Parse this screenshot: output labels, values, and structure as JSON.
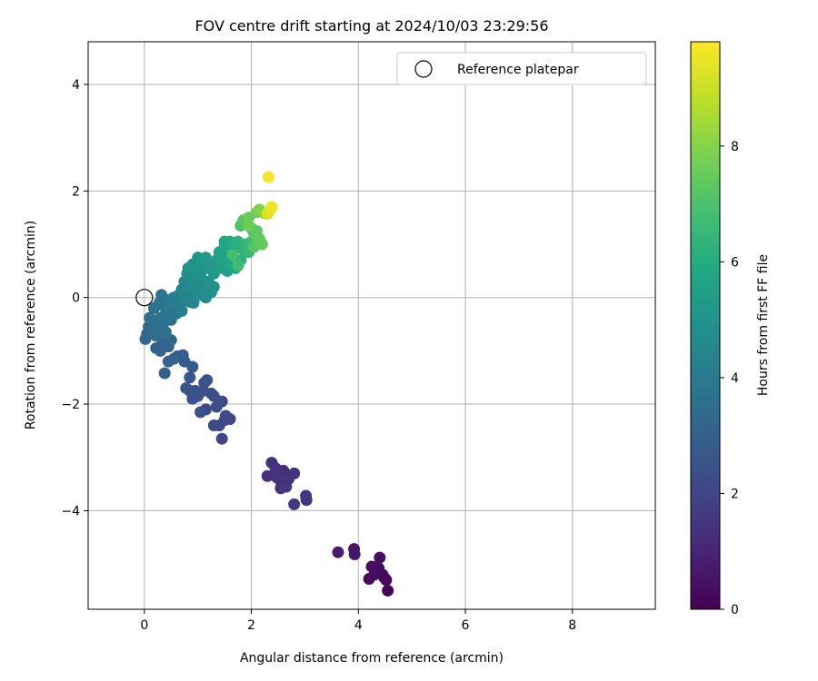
{
  "chart_data": {
    "type": "scatter",
    "title": "FOV centre drift starting at 2024/10/03 23:29:56",
    "xlabel": "Angular distance from reference (arcmin)",
    "ylabel": "Rotation from reference (arcmin)",
    "xlim": [
      -1.05,
      9.55
    ],
    "ylim": [
      -5.85,
      4.8
    ],
    "xticks": [
      0,
      2,
      4,
      6,
      8
    ],
    "yticks": [
      -4,
      -2,
      0,
      2,
      4
    ],
    "xtick_labels": [
      "0",
      "2",
      "4",
      "6",
      "8"
    ],
    "ytick_labels": [
      "−4",
      "−2",
      "0",
      "2",
      "4"
    ],
    "grid": true,
    "legend": {
      "placement": "top-right",
      "entries": [
        {
          "label": "Reference platepar",
          "marker": "open-circle"
        }
      ]
    },
    "reference_point": {
      "x": 0,
      "y": 0
    },
    "colorbar": {
      "label": "Hours from first FF file",
      "range": [
        0,
        9.8
      ],
      "ticks": [
        0,
        2,
        4,
        6,
        8
      ],
      "tick_labels": [
        "0",
        "2",
        "4",
        "6",
        "8"
      ],
      "colormap": "viridis"
    },
    "points": [
      [
        4.55,
        -5.5,
        0.1
      ],
      [
        4.52,
        -5.3,
        0.15
      ],
      [
        4.45,
        -5.2,
        0.2
      ],
      [
        4.35,
        -5.05,
        0.3
      ],
      [
        4.3,
        -5.2,
        0.35
      ],
      [
        4.2,
        -5.28,
        0.25
      ],
      [
        4.25,
        -5.05,
        0.4
      ],
      [
        4.4,
        -4.88,
        0.45
      ],
      [
        4.38,
        -5.08,
        0.3
      ],
      [
        3.92,
        -4.72,
        0.6
      ],
      [
        3.93,
        -4.82,
        0.65
      ],
      [
        3.62,
        -4.78,
        0.75
      ],
      [
        4.48,
        -5.25,
        0.2
      ],
      [
        2.38,
        -3.1,
        1.35
      ],
      [
        2.45,
        -3.2,
        1.4
      ],
      [
        2.3,
        -3.35,
        1.3
      ],
      [
        2.55,
        -3.45,
        1.45
      ],
      [
        2.6,
        -3.25,
        1.35
      ],
      [
        2.7,
        -3.4,
        1.5
      ],
      [
        2.8,
        -3.3,
        1.4
      ],
      [
        3.02,
        -3.72,
        1.55
      ],
      [
        3.03,
        -3.8,
        1.5
      ],
      [
        2.8,
        -3.88,
        1.6
      ],
      [
        2.55,
        -3.58,
        1.45
      ],
      [
        2.65,
        -3.55,
        1.55
      ],
      [
        2.48,
        -3.38,
        1.4
      ],
      [
        1.45,
        -2.65,
        2.0
      ],
      [
        1.4,
        -2.4,
        2.05
      ],
      [
        1.5,
        -2.3,
        2.1
      ],
      [
        1.3,
        -2.4,
        2.15
      ],
      [
        1.6,
        -2.28,
        2.05
      ],
      [
        1.52,
        -2.22,
        2.2
      ],
      [
        1.45,
        -1.95,
        2.25
      ],
      [
        1.35,
        -2.05,
        2.3
      ],
      [
        1.3,
        -1.85,
        2.35
      ],
      [
        1.25,
        -1.8,
        2.3
      ],
      [
        1.15,
        -2.1,
        2.25
      ],
      [
        1.05,
        -2.15,
        2.4
      ],
      [
        1.0,
        -1.85,
        2.45
      ],
      [
        0.95,
        -1.75,
        2.4
      ],
      [
        0.85,
        -1.75,
        2.5
      ],
      [
        0.9,
        -1.9,
        2.55
      ],
      [
        1.12,
        -1.6,
        2.45
      ],
      [
        1.17,
        -1.55,
        2.5
      ],
      [
        0.78,
        -1.7,
        2.6
      ],
      [
        1.1,
        -1.75,
        2.4
      ],
      [
        0.85,
        -1.5,
        2.7
      ],
      [
        0.9,
        -1.3,
        2.75
      ],
      [
        0.75,
        -1.2,
        2.8
      ],
      [
        0.72,
        -1.08,
        2.85
      ],
      [
        0.62,
        -1.1,
        2.9
      ],
      [
        0.55,
        -1.15,
        2.95
      ],
      [
        0.45,
        -1.2,
        3.0
      ],
      [
        0.38,
        -1.42,
        2.9
      ],
      [
        0.3,
        -1.0,
        3.05
      ],
      [
        0.22,
        -0.95,
        3.1
      ],
      [
        0.35,
        -0.85,
        3.15
      ],
      [
        0.45,
        -0.92,
        3.1
      ],
      [
        0.5,
        -0.8,
        3.2
      ],
      [
        0.02,
        -0.78,
        3.3
      ],
      [
        0.05,
        -0.68,
        3.35
      ],
      [
        0.08,
        -0.55,
        3.4
      ],
      [
        0.15,
        -0.62,
        3.5
      ],
      [
        0.2,
        -0.45,
        3.55
      ],
      [
        0.22,
        -0.72,
        3.45
      ],
      [
        0.25,
        -0.55,
        3.6
      ],
      [
        0.3,
        -0.38,
        3.7
      ],
      [
        0.35,
        -0.5,
        3.65
      ],
      [
        0.4,
        -0.65,
        3.6
      ],
      [
        0.42,
        -0.32,
        3.8
      ],
      [
        0.48,
        -0.2,
        3.85
      ],
      [
        0.5,
        -0.42,
        3.75
      ],
      [
        0.55,
        -0.15,
        3.9
      ],
      [
        0.6,
        -0.3,
        3.85
      ],
      [
        0.1,
        -0.38,
        3.6
      ],
      [
        0.18,
        -0.2,
        3.7
      ],
      [
        0.28,
        -0.1,
        3.75
      ],
      [
        0.32,
        0.05,
        3.8
      ],
      [
        0.38,
        -0.18,
        3.9
      ],
      [
        0.45,
        -0.05,
        4.0
      ],
      [
        0.55,
        0.0,
        4.1
      ],
      [
        0.62,
        -0.1,
        4.05
      ],
      [
        0.65,
        0.05,
        4.2
      ],
      [
        0.7,
        -0.25,
        4.1
      ],
      [
        0.75,
        -0.05,
        4.3
      ],
      [
        0.8,
        0.1,
        4.4
      ],
      [
        0.85,
        -0.08,
        4.35
      ],
      [
        0.88,
        0.05,
        4.5
      ],
      [
        0.92,
        -0.1,
        4.45
      ],
      [
        0.7,
        0.15,
        4.45
      ],
      [
        0.75,
        0.3,
        4.6
      ],
      [
        0.8,
        0.45,
        4.7
      ],
      [
        0.85,
        0.2,
        4.6
      ],
      [
        0.9,
        0.35,
        4.8
      ],
      [
        0.95,
        0.25,
        4.75
      ],
      [
        1.0,
        0.12,
        4.6
      ],
      [
        1.05,
        0.4,
        4.9
      ],
      [
        1.1,
        0.2,
        4.8
      ],
      [
        1.15,
        0.55,
        5.0
      ],
      [
        1.2,
        0.3,
        4.95
      ],
      [
        1.25,
        0.1,
        4.85
      ],
      [
        0.82,
        0.55,
        4.9
      ],
      [
        0.9,
        0.62,
        5.0
      ],
      [
        1.0,
        0.75,
        5.1
      ],
      [
        1.08,
        0.65,
        5.15
      ],
      [
        1.15,
        0.75,
        5.2
      ],
      [
        1.22,
        0.6,
        5.25
      ],
      [
        1.3,
        0.45,
        5.2
      ],
      [
        1.35,
        0.7,
        5.35
      ],
      [
        1.4,
        0.55,
        5.3
      ],
      [
        0.95,
        0.5,
        5.05
      ],
      [
        1.05,
        0.05,
        4.7
      ],
      [
        1.15,
        0.0,
        4.65
      ],
      [
        1.3,
        0.2,
        4.95
      ],
      [
        1.4,
        0.85,
        5.6
      ],
      [
        1.45,
        0.65,
        5.55
      ],
      [
        1.5,
        0.95,
        5.75
      ],
      [
        1.55,
        0.75,
        5.7
      ],
      [
        1.6,
        1.05,
        5.9
      ],
      [
        1.5,
        1.05,
        5.85
      ],
      [
        1.65,
        0.85,
        5.95
      ],
      [
        1.7,
        0.95,
        6.05
      ],
      [
        1.6,
        0.6,
        5.8
      ],
      [
        1.75,
        1.05,
        6.2
      ],
      [
        1.8,
        0.7,
        6.2
      ],
      [
        1.85,
        0.9,
        6.35
      ],
      [
        1.9,
        1.0,
        6.45
      ],
      [
        1.95,
        0.85,
        6.5
      ],
      [
        2.0,
        1.05,
        6.6
      ],
      [
        1.55,
        0.5,
        5.5
      ],
      [
        1.7,
        0.55,
        5.9
      ],
      [
        1.75,
        0.6,
        6.7
      ],
      [
        1.65,
        0.8,
        6.8
      ],
      [
        2.0,
        1.3,
        7.1
      ],
      [
        2.05,
        1.2,
        7.2
      ],
      [
        1.8,
        1.35,
        7.0
      ],
      [
        1.85,
        1.45,
        7.2
      ],
      [
        2.1,
        1.25,
        7.3
      ],
      [
        2.15,
        1.1,
        7.35
      ],
      [
        2.2,
        1.0,
        7.4
      ],
      [
        2.05,
        0.95,
        7.15
      ],
      [
        1.95,
        1.5,
        7.5
      ],
      [
        2.1,
        1.6,
        7.7
      ],
      [
        2.15,
        1.65,
        7.9
      ],
      [
        2.25,
        1.58,
        8.1
      ],
      [
        1.95,
        1.35,
        7.6
      ],
      [
        2.32,
        1.6,
        9.3
      ],
      [
        2.35,
        1.65,
        9.4
      ],
      [
        2.38,
        1.7,
        9.5
      ],
      [
        2.3,
        1.57,
        9.2
      ],
      [
        2.32,
        2.26,
        9.7
      ]
    ]
  }
}
